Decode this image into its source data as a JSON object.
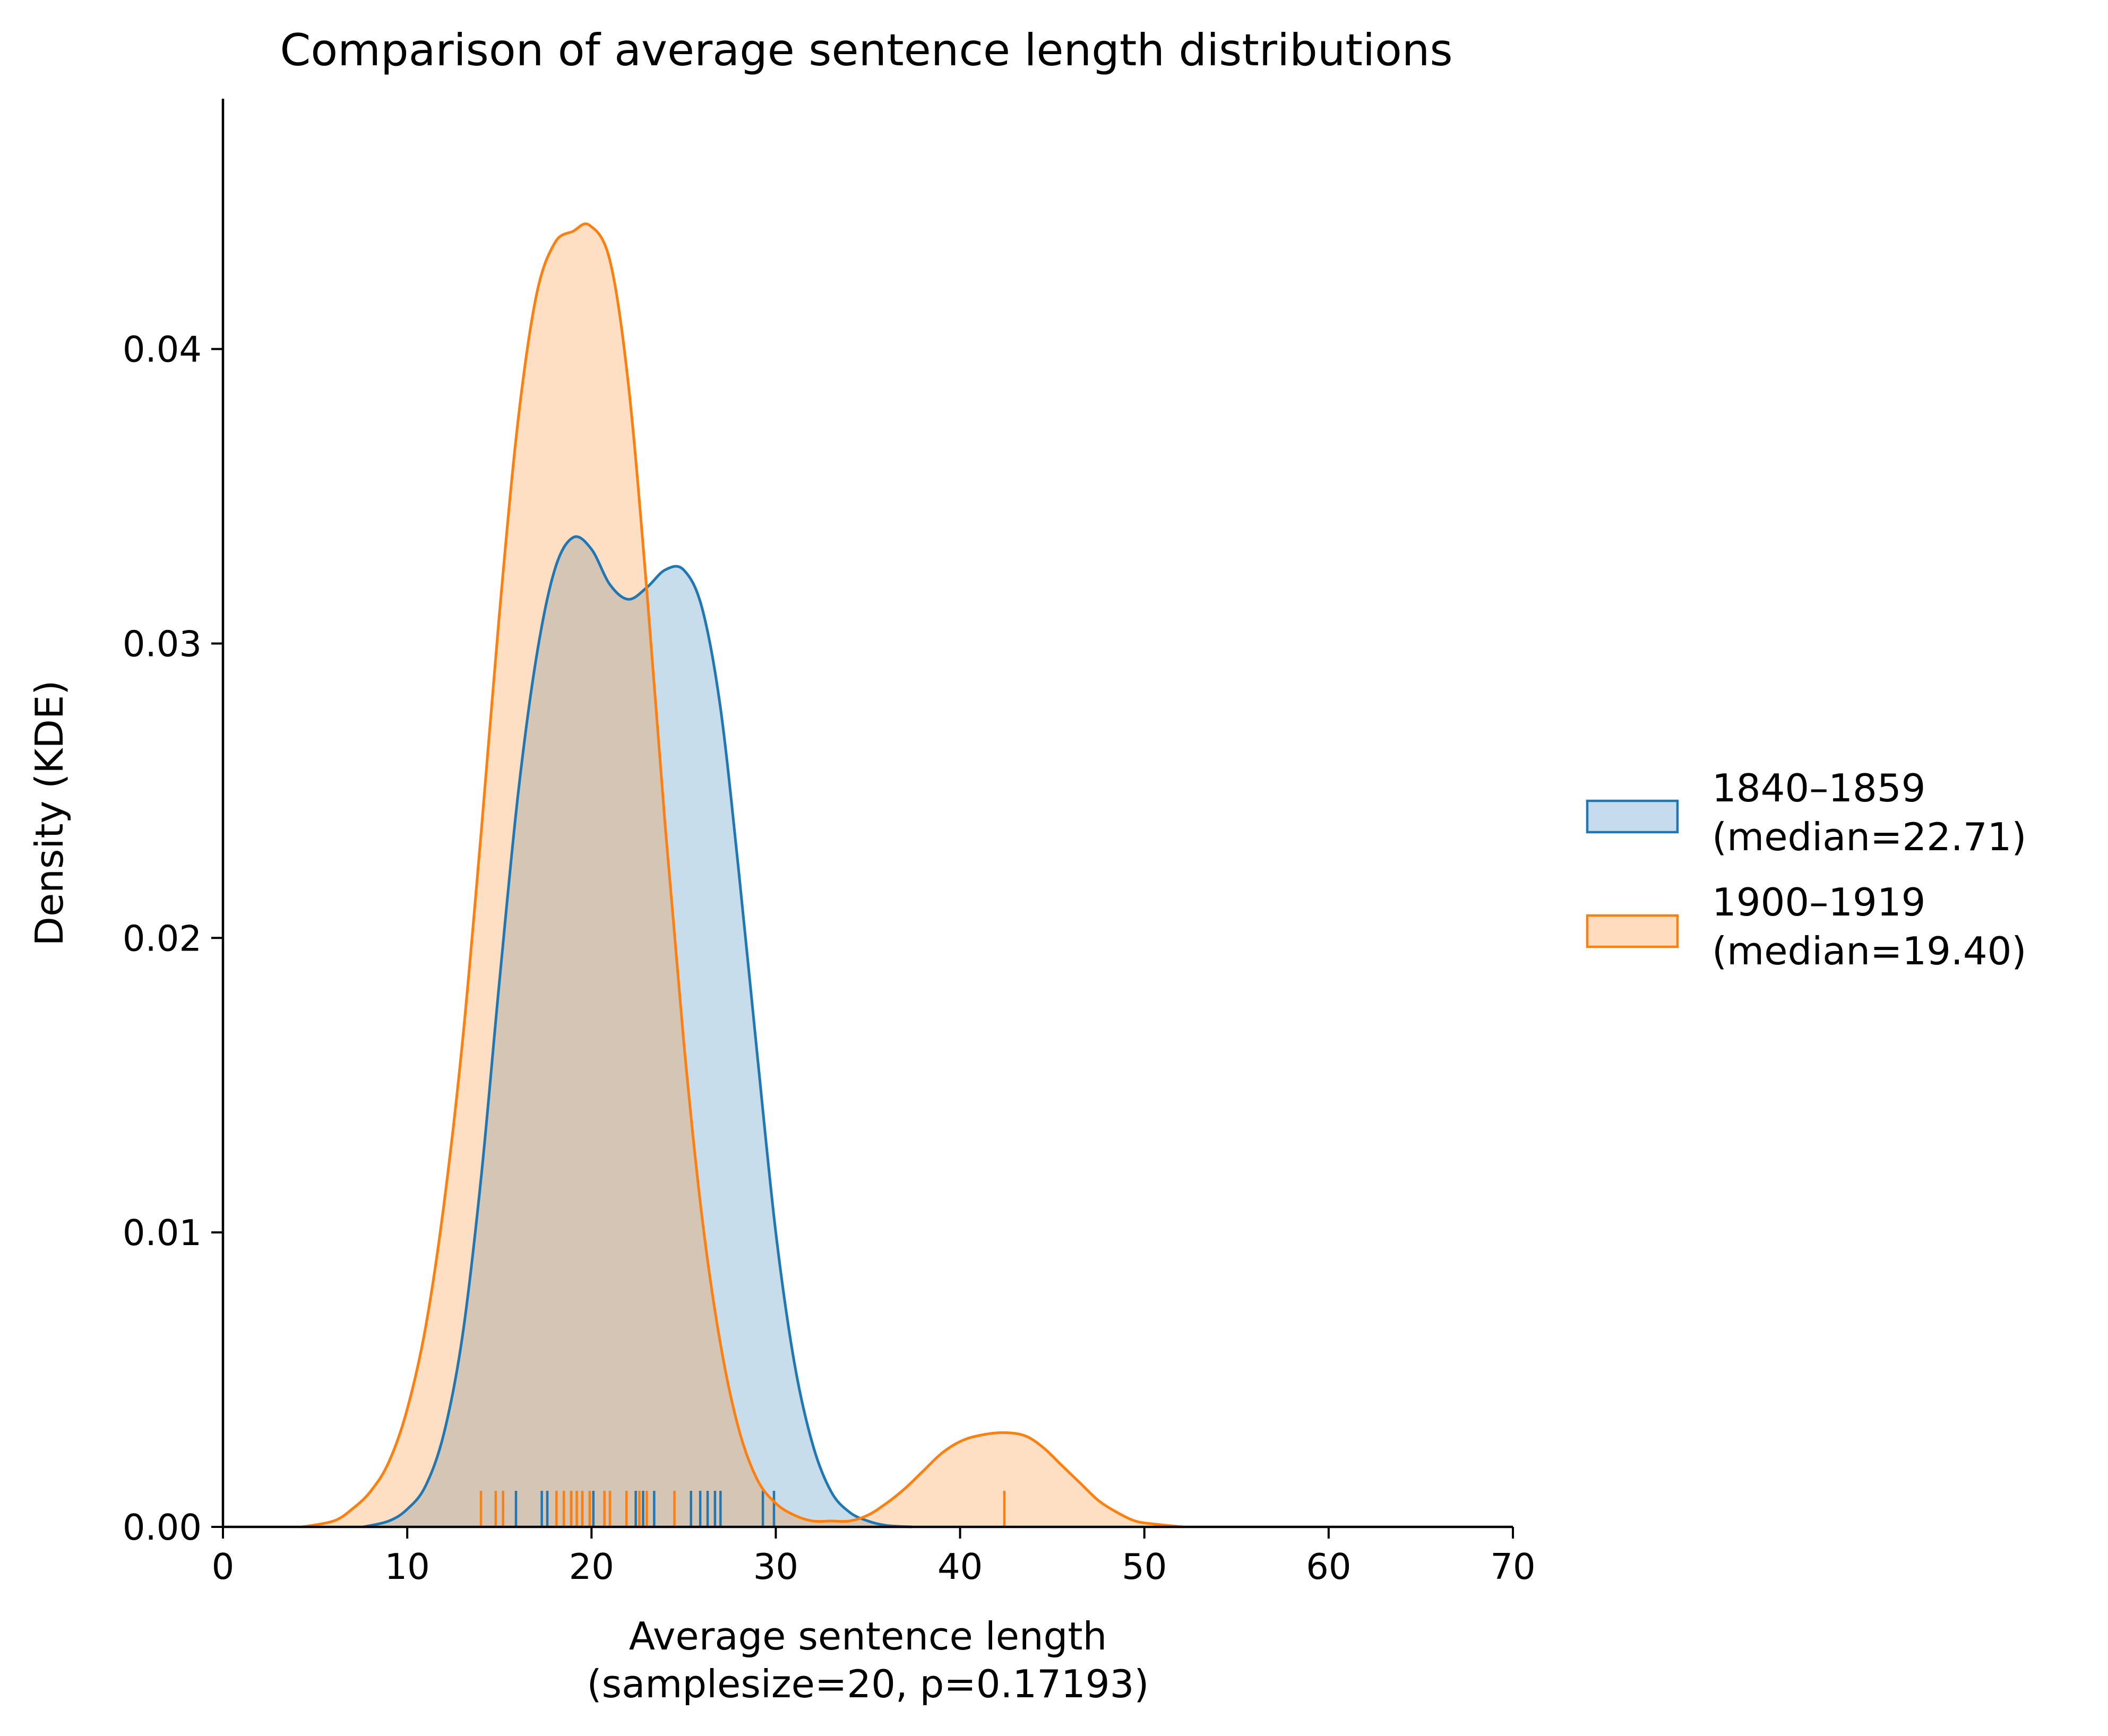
{
  "chart_data": {
    "type": "area",
    "title": "Comparison of average sentence length distributions",
    "xlabel": "Average sentence length",
    "xlabel_sub": "(samplesize=20, p=0.17193)",
    "ylabel": "Density (KDE)",
    "xlim": [
      0,
      70
    ],
    "ylim": [
      0,
      0.0485
    ],
    "x_ticks": [
      0,
      10,
      20,
      30,
      40,
      50,
      60,
      70
    ],
    "x_tick_labels": [
      "0",
      "10",
      "20",
      "30",
      "40",
      "50",
      "60",
      "70"
    ],
    "y_ticks": [
      0,
      0.01,
      0.02,
      0.03,
      0.04
    ],
    "y_tick_labels": [
      "0.00",
      "0.01",
      "0.02",
      "0.03",
      "0.04"
    ],
    "grid": false,
    "legend_position": "right",
    "series": [
      {
        "name": "1840–1859",
        "name_sub": "(median=22.71)",
        "color": "#1f77b4",
        "fill": "#c6dbed",
        "curve": [
          [
            7.6,
            0.0
          ],
          [
            9.0,
            0.0002
          ],
          [
            10.0,
            0.0006
          ],
          [
            11.0,
            0.0014
          ],
          [
            12.0,
            0.0032
          ],
          [
            13.0,
            0.0065
          ],
          [
            14.0,
            0.0118
          ],
          [
            15.0,
            0.0185
          ],
          [
            16.0,
            0.0248
          ],
          [
            17.0,
            0.0295
          ],
          [
            18.0,
            0.0325
          ],
          [
            19.0,
            0.0336
          ],
          [
            20.0,
            0.0332
          ],
          [
            21.0,
            0.032
          ],
          [
            22.0,
            0.0315
          ],
          [
            23.0,
            0.0319
          ],
          [
            24.0,
            0.0325
          ],
          [
            25.0,
            0.0325
          ],
          [
            26.0,
            0.0312
          ],
          [
            27.0,
            0.0278
          ],
          [
            28.0,
            0.0222
          ],
          [
            29.0,
            0.016
          ],
          [
            30.0,
            0.01
          ],
          [
            31.0,
            0.0056
          ],
          [
            32.0,
            0.0028
          ],
          [
            33.0,
            0.0012
          ],
          [
            34.0,
            0.0005
          ],
          [
            35.0,
            0.0002
          ],
          [
            36.0,
            5e-05
          ],
          [
            37.4,
            0.0
          ]
        ],
        "rug": [
          15.9,
          17.3,
          17.6,
          18.5,
          18.9,
          20.1,
          22.4,
          22.8,
          23.4,
          25.4,
          25.9,
          26.3,
          26.7,
          27.0,
          29.3,
          29.9
        ]
      },
      {
        "name": "1900–1919",
        "name_sub": "(median=19.40)",
        "color": "#ff7f0e",
        "fill": "#ffdcbe",
        "curve": [
          [
            4.3,
            0.0
          ],
          [
            6.0,
            0.0002
          ],
          [
            7.0,
            0.0006
          ],
          [
            8.0,
            0.0012
          ],
          [
            9.0,
            0.0022
          ],
          [
            10.0,
            0.004
          ],
          [
            11.0,
            0.0068
          ],
          [
            12.0,
            0.011
          ],
          [
            13.0,
            0.0165
          ],
          [
            14.0,
            0.0235
          ],
          [
            15.0,
            0.031
          ],
          [
            16.0,
            0.0375
          ],
          [
            17.0,
            0.0418
          ],
          [
            18.0,
            0.0436
          ],
          [
            19.0,
            0.044
          ],
          [
            19.9,
            0.0442
          ],
          [
            21.0,
            0.043
          ],
          [
            22.0,
            0.0388
          ],
          [
            23.0,
            0.0318
          ],
          [
            24.0,
            0.0238
          ],
          [
            25.0,
            0.0165
          ],
          [
            26.0,
            0.0105
          ],
          [
            27.0,
            0.0062
          ],
          [
            28.0,
            0.0033
          ],
          [
            29.0,
            0.0016
          ],
          [
            30.0,
            0.0008
          ],
          [
            31.0,
            0.0004
          ],
          [
            32.0,
            0.0002
          ],
          [
            33.0,
            0.0002
          ],
          [
            34.0,
            0.0002
          ],
          [
            35.0,
            0.0004
          ],
          [
            36.0,
            0.0008
          ],
          [
            37.0,
            0.0013
          ],
          [
            38.0,
            0.0019
          ],
          [
            39.0,
            0.0025
          ],
          [
            40.0,
            0.0029
          ],
          [
            41.0,
            0.0031
          ],
          [
            42.3,
            0.0032
          ],
          [
            43.5,
            0.0031
          ],
          [
            44.5,
            0.0027
          ],
          [
            45.5,
            0.0021
          ],
          [
            46.5,
            0.0015
          ],
          [
            47.5,
            0.0009
          ],
          [
            48.5,
            0.0005
          ],
          [
            49.5,
            0.0002
          ],
          [
            50.5,
            0.0001
          ],
          [
            52.1,
            0.0
          ]
        ],
        "rug": [
          14.0,
          14.8,
          15.2,
          18.1,
          18.5,
          18.9,
          19.2,
          19.5,
          19.9,
          20.7,
          21.0,
          21.9,
          22.6,
          23.0,
          24.5,
          42.4
        ]
      }
    ]
  }
}
